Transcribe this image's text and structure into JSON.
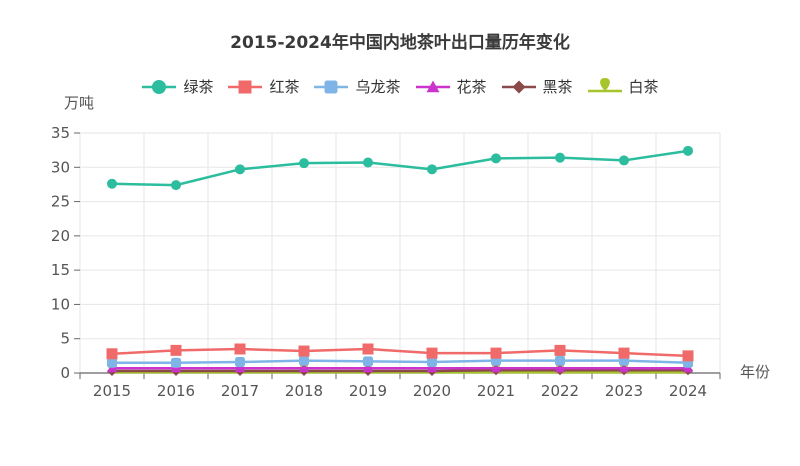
{
  "chart_data": {
    "type": "line",
    "title": "2015-2024年中国内地茶叶出口量历年变化",
    "xlabel": "年份",
    "ylabel": "万吨",
    "ylim": [
      0,
      35
    ],
    "yticks": [
      0,
      5,
      10,
      15,
      20,
      25,
      30,
      35
    ],
    "grid": true,
    "legend_position": "top",
    "categories": [
      "2015",
      "2016",
      "2017",
      "2018",
      "2019",
      "2020",
      "2021",
      "2022",
      "2023",
      "2024"
    ],
    "series": [
      {
        "name": "绿茶",
        "color": "#2bbd9e",
        "marker": "circle",
        "values": [
          27.6,
          27.4,
          29.7,
          30.6,
          30.7,
          29.7,
          31.3,
          31.4,
          31.0,
          32.4
        ]
      },
      {
        "name": "红茶",
        "color": "#f06a6a",
        "marker": "square",
        "values": [
          2.8,
          3.3,
          3.5,
          3.2,
          3.5,
          2.9,
          2.9,
          3.3,
          2.9,
          2.5
        ]
      },
      {
        "name": "乌龙茶",
        "color": "#7fb4e6",
        "marker": "roundRect",
        "values": [
          1.5,
          1.5,
          1.6,
          1.8,
          1.7,
          1.6,
          1.8,
          1.8,
          1.8,
          1.5
        ]
      },
      {
        "name": "花茶",
        "color": "#cc33cc",
        "marker": "triangle",
        "values": [
          0.7,
          0.7,
          0.7,
          0.7,
          0.7,
          0.7,
          0.7,
          0.7,
          0.7,
          0.7
        ]
      },
      {
        "name": "黑茶",
        "color": "#8b4a4a",
        "marker": "diamond",
        "values": [
          0.3,
          0.3,
          0.3,
          0.3,
          0.3,
          0.3,
          0.4,
          0.4,
          0.4,
          0.4
        ]
      },
      {
        "name": "白茶",
        "color": "#a6c52a",
        "marker": "pin",
        "values": [
          0.1,
          0.1,
          0.1,
          0.1,
          0.1,
          0.1,
          0.1,
          0.1,
          0.1,
          0.1
        ]
      }
    ]
  }
}
